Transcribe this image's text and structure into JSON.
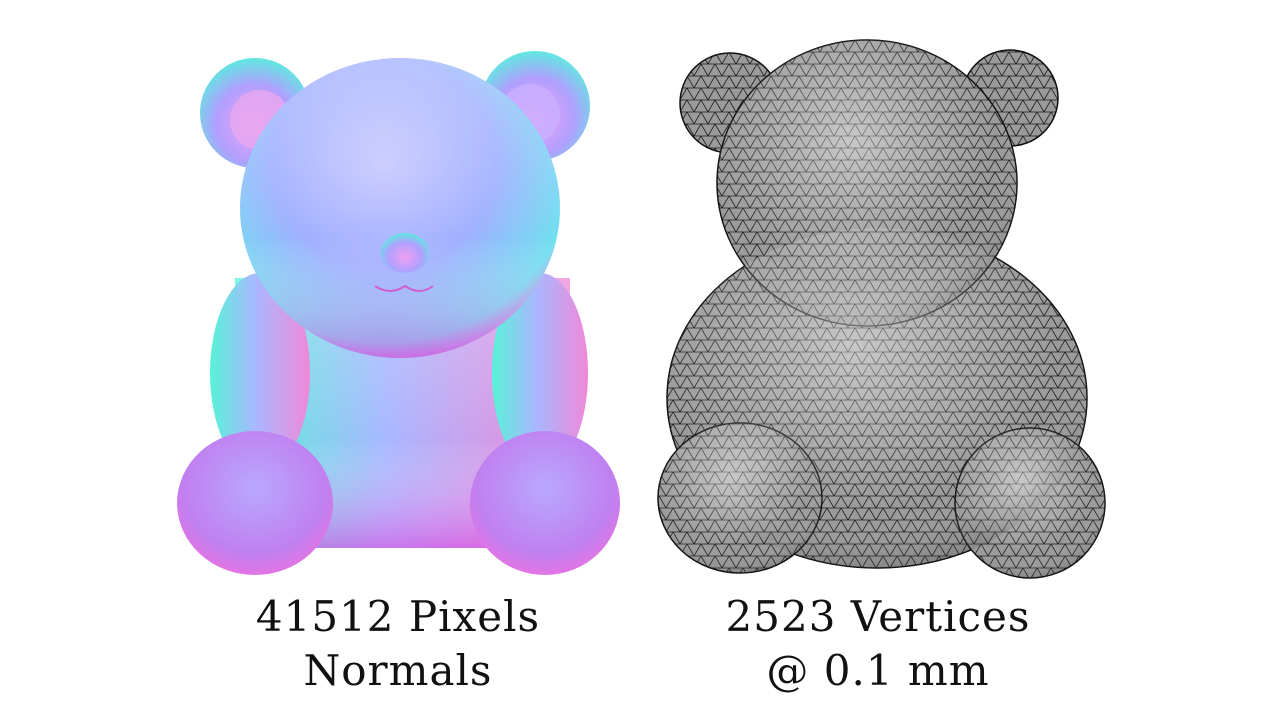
{
  "figure": {
    "left_panel": {
      "caption_line1": "41512 Pixels",
      "caption_line2": "Normals",
      "image_kind": "normal-map-teddy-bear"
    },
    "right_panel": {
      "caption_line1": "2523 Vertices",
      "caption_line2": "@ 0.1 mm",
      "image_kind": "wireframe-mesh-teddy-bear"
    }
  },
  "colors": {
    "normal_cyan": "#60f0e0",
    "normal_violet": "#b090ff",
    "normal_magenta": "#f070e8",
    "mesh_gray": "#8a8a8a",
    "mesh_line": "#1a1a1a"
  }
}
